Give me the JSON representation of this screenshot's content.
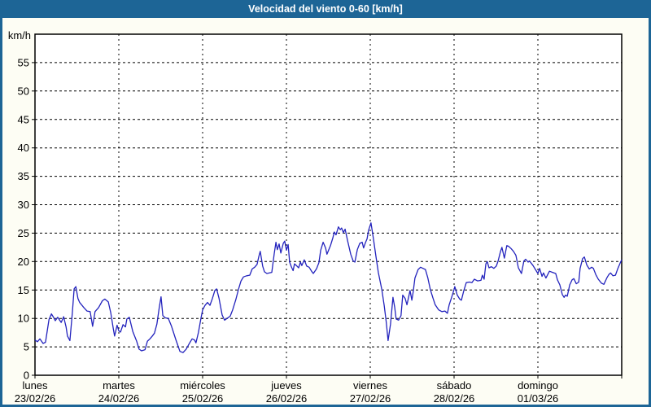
{
  "title_bar": {
    "title": "Velocidad del viento 0-60 [km/h]"
  },
  "colors": {
    "titlebar_bg": "#1d6596",
    "window_border": "#1d6596",
    "page_bg": "#fdfdf4",
    "plot_bg": "#ffffff",
    "grid": "#000000",
    "text": "#000000",
    "title_text": "#ffffff",
    "line": "#2323bd"
  },
  "chart_data": {
    "type": "line",
    "title": "Velocidad del viento 0-60 [km/h]",
    "ylabel": "km/h",
    "ylim": [
      0,
      60
    ],
    "ytick_interval": 5,
    "xlim_hours": [
      0,
      168
    ],
    "grid": "dashed",
    "legend_position": "none",
    "day_labels": [
      {
        "name": "lunes",
        "date": "23/02/26",
        "hour": 0
      },
      {
        "name": "martes",
        "date": "24/02/26",
        "hour": 24
      },
      {
        "name": "miércoles",
        "date": "25/02/26",
        "hour": 48
      },
      {
        "name": "jueves",
        "date": "26/02/26",
        "hour": 72
      },
      {
        "name": "viernes",
        "date": "27/02/26",
        "hour": 96
      },
      {
        "name": "sábado",
        "date": "28/02/26",
        "hour": 120
      },
      {
        "name": "domingo",
        "date": "01/03/26",
        "hour": 144
      }
    ],
    "series": [
      {
        "name": "velocidad del viento",
        "color": "#2323bd",
        "points": [
          [
            0,
            6.2
          ],
          [
            0.7,
            5.9
          ],
          [
            1.4,
            6.4
          ],
          [
            2.3,
            5.6
          ],
          [
            3,
            5.8
          ],
          [
            4,
            9.8
          ],
          [
            4.7,
            10.8
          ],
          [
            5.4,
            10.1
          ],
          [
            5.8,
            9.6
          ],
          [
            6.5,
            10.2
          ],
          [
            7.5,
            9.3
          ],
          [
            8.2,
            10.3
          ],
          [
            8.9,
            8.5
          ],
          [
            9.3,
            6.9
          ],
          [
            10,
            6.1
          ],
          [
            10.7,
            11
          ],
          [
            11.2,
            15.2
          ],
          [
            11.7,
            15.6
          ],
          [
            12.3,
            13.5
          ],
          [
            12.8,
            12.8
          ],
          [
            14,
            11.9
          ],
          [
            14.9,
            11.3
          ],
          [
            15.8,
            11.2
          ],
          [
            16.5,
            8.6
          ],
          [
            17.2,
            11.2
          ],
          [
            18.2,
            11.9
          ],
          [
            19.3,
            13.1
          ],
          [
            20,
            13.4
          ],
          [
            21,
            12.9
          ],
          [
            21.7,
            11
          ],
          [
            22.4,
            8.3
          ],
          [
            22.8,
            6.9
          ],
          [
            23.5,
            8.8
          ],
          [
            24,
            7.8
          ],
          [
            24.5,
            7.6
          ],
          [
            25.2,
            8.9
          ],
          [
            25.9,
            8.5
          ],
          [
            26.3,
            9.9
          ],
          [
            27,
            10.2
          ],
          [
            28,
            7.7
          ],
          [
            29.1,
            6
          ],
          [
            29.8,
            4.6
          ],
          [
            30.5,
            4.3
          ],
          [
            31.5,
            4.5
          ],
          [
            32.2,
            6
          ],
          [
            32.9,
            6.4
          ],
          [
            33.6,
            6.9
          ],
          [
            34.2,
            7.4
          ],
          [
            34.9,
            9
          ],
          [
            35.6,
            12
          ],
          [
            36.1,
            13.8
          ],
          [
            36.6,
            10.5
          ],
          [
            37.3,
            10.1
          ],
          [
            38.2,
            10
          ],
          [
            39.1,
            8.6
          ],
          [
            40.3,
            6.3
          ],
          [
            41.5,
            4.2
          ],
          [
            42.4,
            4
          ],
          [
            43.3,
            4.6
          ],
          [
            44.3,
            5.7
          ],
          [
            45,
            6.4
          ],
          [
            45.7,
            6.2
          ],
          [
            46.1,
            5.7
          ],
          [
            46.8,
            7.5
          ],
          [
            47.5,
            10
          ],
          [
            48,
            11.5
          ],
          [
            48.7,
            12.3
          ],
          [
            49.4,
            12.8
          ],
          [
            50.1,
            12.3
          ],
          [
            50.8,
            13.5
          ],
          [
            51.5,
            14.9
          ],
          [
            52,
            15.2
          ],
          [
            52.7,
            13.5
          ],
          [
            53.6,
            10.6
          ],
          [
            54.3,
            9.7
          ],
          [
            55,
            10
          ],
          [
            55.9,
            10.4
          ],
          [
            56.6,
            11.5
          ],
          [
            57.5,
            13.3
          ],
          [
            58.3,
            15.2
          ],
          [
            59,
            16.6
          ],
          [
            59.7,
            17.3
          ],
          [
            60.6,
            17.5
          ],
          [
            61.5,
            17.6
          ],
          [
            62.2,
            18.7
          ],
          [
            62.9,
            19
          ],
          [
            63.6,
            19.5
          ],
          [
            64.1,
            20.9
          ],
          [
            64.5,
            21.8
          ],
          [
            65.2,
            19.2
          ],
          [
            65.7,
            18.2
          ],
          [
            66.4,
            17.9
          ],
          [
            67.1,
            18
          ],
          [
            67.8,
            18.1
          ],
          [
            68.5,
            21.4
          ],
          [
            69,
            23.4
          ],
          [
            69.4,
            22.1
          ],
          [
            69.9,
            23.1
          ],
          [
            70.4,
            21.5
          ],
          [
            71.1,
            23.2
          ],
          [
            71.5,
            23.6
          ],
          [
            72,
            22
          ],
          [
            72.5,
            23
          ],
          [
            72.9,
            19.9
          ],
          [
            73.4,
            19.1
          ],
          [
            73.9,
            18.4
          ],
          [
            74.3,
            19.6
          ],
          [
            75,
            19.2
          ],
          [
            75.5,
            18.9
          ],
          [
            76,
            19.9
          ],
          [
            76.4,
            19.3
          ],
          [
            77.1,
            20.3
          ],
          [
            77.8,
            19.2
          ],
          [
            78.5,
            19
          ],
          [
            79.2,
            18.3
          ],
          [
            79.7,
            17.9
          ],
          [
            80.6,
            18.7
          ],
          [
            81.3,
            19.8
          ],
          [
            81.8,
            22
          ],
          [
            82.5,
            23.4
          ],
          [
            83.2,
            22.4
          ],
          [
            83.6,
            21.3
          ],
          [
            84.6,
            22.8
          ],
          [
            85.3,
            24.2
          ],
          [
            85.7,
            25.2
          ],
          [
            86.2,
            24.7
          ],
          [
            86.9,
            26.1
          ],
          [
            87.4,
            25.6
          ],
          [
            87.8,
            25.9
          ],
          [
            88.3,
            25.1
          ],
          [
            88.8,
            25.7
          ],
          [
            89.5,
            23.7
          ],
          [
            90.4,
            21.3
          ],
          [
            91.1,
            20.1
          ],
          [
            91.6,
            19.9
          ],
          [
            92.3,
            22.1
          ],
          [
            93,
            23.2
          ],
          [
            93.7,
            23.4
          ],
          [
            94.1,
            22.4
          ],
          [
            94.6,
            23.3
          ],
          [
            95.1,
            24
          ],
          [
            95.5,
            25.5
          ],
          [
            96,
            26.4
          ],
          [
            96.2,
            26.8
          ],
          [
            96.9,
            24
          ],
          [
            97.6,
            21
          ],
          [
            98.3,
            18.1
          ],
          [
            99.3,
            15.1
          ],
          [
            100,
            12.2
          ],
          [
            100.6,
            9.3
          ],
          [
            101.1,
            6.1
          ],
          [
            101.8,
            9
          ],
          [
            102.5,
            13.7
          ],
          [
            103,
            12
          ],
          [
            103.4,
            9.9
          ],
          [
            104.1,
            9.7
          ],
          [
            104.8,
            10.5
          ],
          [
            105.3,
            14.1
          ],
          [
            106,
            13.5
          ],
          [
            106.5,
            12.4
          ],
          [
            107.4,
            14.9
          ],
          [
            107.9,
            13.2
          ],
          [
            108.3,
            14.7
          ],
          [
            108.8,
            17.1
          ],
          [
            109.7,
            18.6
          ],
          [
            110.4,
            19
          ],
          [
            111.1,
            18.8
          ],
          [
            111.8,
            18.6
          ],
          [
            112.5,
            17.1
          ],
          [
            113.2,
            15.1
          ],
          [
            113.9,
            13.7
          ],
          [
            114.6,
            12.4
          ],
          [
            115.6,
            11.5
          ],
          [
            116.5,
            11.2
          ],
          [
            117.4,
            11.3
          ],
          [
            118.1,
            10.9
          ],
          [
            118.6,
            12.4
          ],
          [
            119.3,
            13.7
          ],
          [
            120,
            15.1
          ],
          [
            120.2,
            15.6
          ],
          [
            120.9,
            14.1
          ],
          [
            121.6,
            13.4
          ],
          [
            122.1,
            13.2
          ],
          [
            122.8,
            14.9
          ],
          [
            123.5,
            16.3
          ],
          [
            124.4,
            16.4
          ],
          [
            125.1,
            16.3
          ],
          [
            125.8,
            16.9
          ],
          [
            126.7,
            16.6
          ],
          [
            127.7,
            16.7
          ],
          [
            128.1,
            17.6
          ],
          [
            128.6,
            16.9
          ],
          [
            129.1,
            19.6
          ],
          [
            129.5,
            20
          ],
          [
            130,
            18.9
          ],
          [
            130.7,
            19.1
          ],
          [
            131.4,
            18.8
          ],
          [
            132.1,
            19.2
          ],
          [
            132.6,
            20.1
          ],
          [
            133.3,
            21.8
          ],
          [
            133.7,
            22.5
          ],
          [
            134.4,
            20.6
          ],
          [
            135.1,
            22.8
          ],
          [
            135.6,
            22.7
          ],
          [
            136.3,
            22.3
          ],
          [
            137,
            21.8
          ],
          [
            137.7,
            21.1
          ],
          [
            138.4,
            18.9
          ],
          [
            139.1,
            18.1
          ],
          [
            139.3,
            17.9
          ],
          [
            140,
            20.1
          ],
          [
            140.5,
            20.4
          ],
          [
            141.2,
            19.9
          ],
          [
            141.6,
            20.1
          ],
          [
            142.6,
            19.3
          ],
          [
            143.3,
            18.6
          ],
          [
            144,
            17.9
          ],
          [
            144.5,
            18.8
          ],
          [
            145.2,
            17.4
          ],
          [
            145.6,
            18
          ],
          [
            146.3,
            17.1
          ],
          [
            147.3,
            18.3
          ],
          [
            148.2,
            18.1
          ],
          [
            149.1,
            17.9
          ],
          [
            149.6,
            16.8
          ],
          [
            150.3,
            15.9
          ],
          [
            151,
            14.2
          ],
          [
            151.5,
            13.7
          ],
          [
            151.9,
            14.1
          ],
          [
            152.4,
            13.9
          ],
          [
            153.1,
            15.9
          ],
          [
            153.8,
            16.8
          ],
          [
            154.3,
            17
          ],
          [
            155,
            16.1
          ],
          [
            155.7,
            16.4
          ],
          [
            156.1,
            18.8
          ],
          [
            156.8,
            20.5
          ],
          [
            157.3,
            20.8
          ],
          [
            158,
            19.4
          ],
          [
            158.7,
            18.7
          ],
          [
            159.4,
            19
          ],
          [
            159.9,
            18.8
          ],
          [
            160.6,
            17.7
          ],
          [
            161.3,
            16.9
          ],
          [
            162.2,
            16.2
          ],
          [
            162.9,
            16
          ],
          [
            163.8,
            17.2
          ],
          [
            164.3,
            17.7
          ],
          [
            164.8,
            18
          ],
          [
            165.5,
            17.5
          ],
          [
            166.2,
            17.6
          ],
          [
            166.9,
            18.8
          ],
          [
            167.6,
            19.8
          ],
          [
            168,
            20.3
          ]
        ]
      }
    ]
  }
}
